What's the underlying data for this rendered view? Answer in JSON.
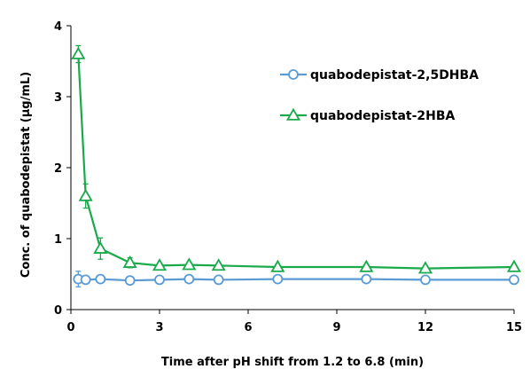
{
  "chart_data": {
    "type": "line",
    "xlabel": "Time after pH shift from 1.2 to 6.8 (min)",
    "ylabel": "Conc. of quabodepistat (μg/mL)",
    "xlim": [
      0,
      15
    ],
    "ylim": [
      0,
      4
    ],
    "xticks": [
      0,
      3,
      6,
      9,
      12,
      15
    ],
    "yticks": [
      0,
      1,
      2,
      3,
      4
    ],
    "grid": false,
    "legend_position": "top-right",
    "series": [
      {
        "name": "quabodepistat-2,5DHBA",
        "color": "#5b9bd5",
        "marker": "circle",
        "x": [
          0.25,
          0.5,
          1,
          2,
          3,
          4,
          5,
          7,
          10,
          12,
          15
        ],
        "y": [
          0.43,
          0.42,
          0.43,
          0.41,
          0.42,
          0.43,
          0.42,
          0.43,
          0.43,
          0.42,
          0.42
        ],
        "err": [
          0.11,
          0.05,
          0.03,
          0.04,
          0.03,
          0.04,
          0.03,
          0.03,
          0.03,
          0.03,
          0.03
        ]
      },
      {
        "name": "quabodepistat-2HBA",
        "color": "#1aaa4b",
        "marker": "triangle",
        "x": [
          0.25,
          0.5,
          1,
          2,
          3,
          4,
          5,
          7,
          10,
          12,
          15
        ],
        "y": [
          3.6,
          1.6,
          0.86,
          0.66,
          0.62,
          0.63,
          0.62,
          0.6,
          0.6,
          0.58,
          0.6
        ],
        "err": [
          0.12,
          0.17,
          0.15,
          0.07,
          0.03,
          0.04,
          0.03,
          0.02,
          0.02,
          0.02,
          0.02
        ]
      }
    ]
  }
}
